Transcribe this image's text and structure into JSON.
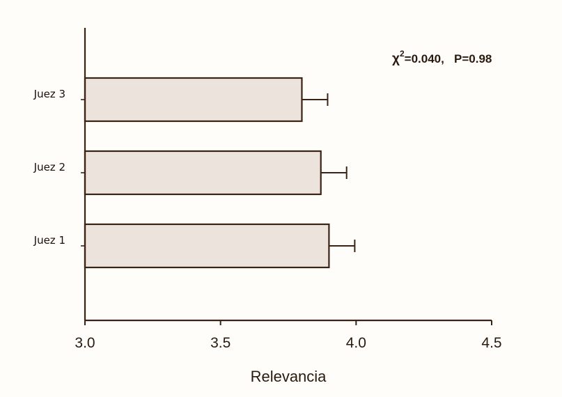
{
  "chart_data": {
    "type": "bar",
    "orientation": "horizontal",
    "categories": [
      "Juez 1",
      "Juez 2",
      "Juez 3"
    ],
    "values": [
      3.9,
      3.87,
      3.8
    ],
    "error_plus": [
      0.095,
      0.095,
      0.095
    ],
    "xlabel": "Relevancia",
    "xlim": [
      3.0,
      4.5
    ],
    "xticks": [
      "3.0",
      "3.5",
      "4.0",
      "4.5"
    ],
    "grid": false,
    "bar_color": "#ebe3dc",
    "line_color": "#3a2314",
    "annotation": {
      "symbol": "χ",
      "superscript": "2",
      "text": "=0.040,   P=0.98"
    }
  }
}
